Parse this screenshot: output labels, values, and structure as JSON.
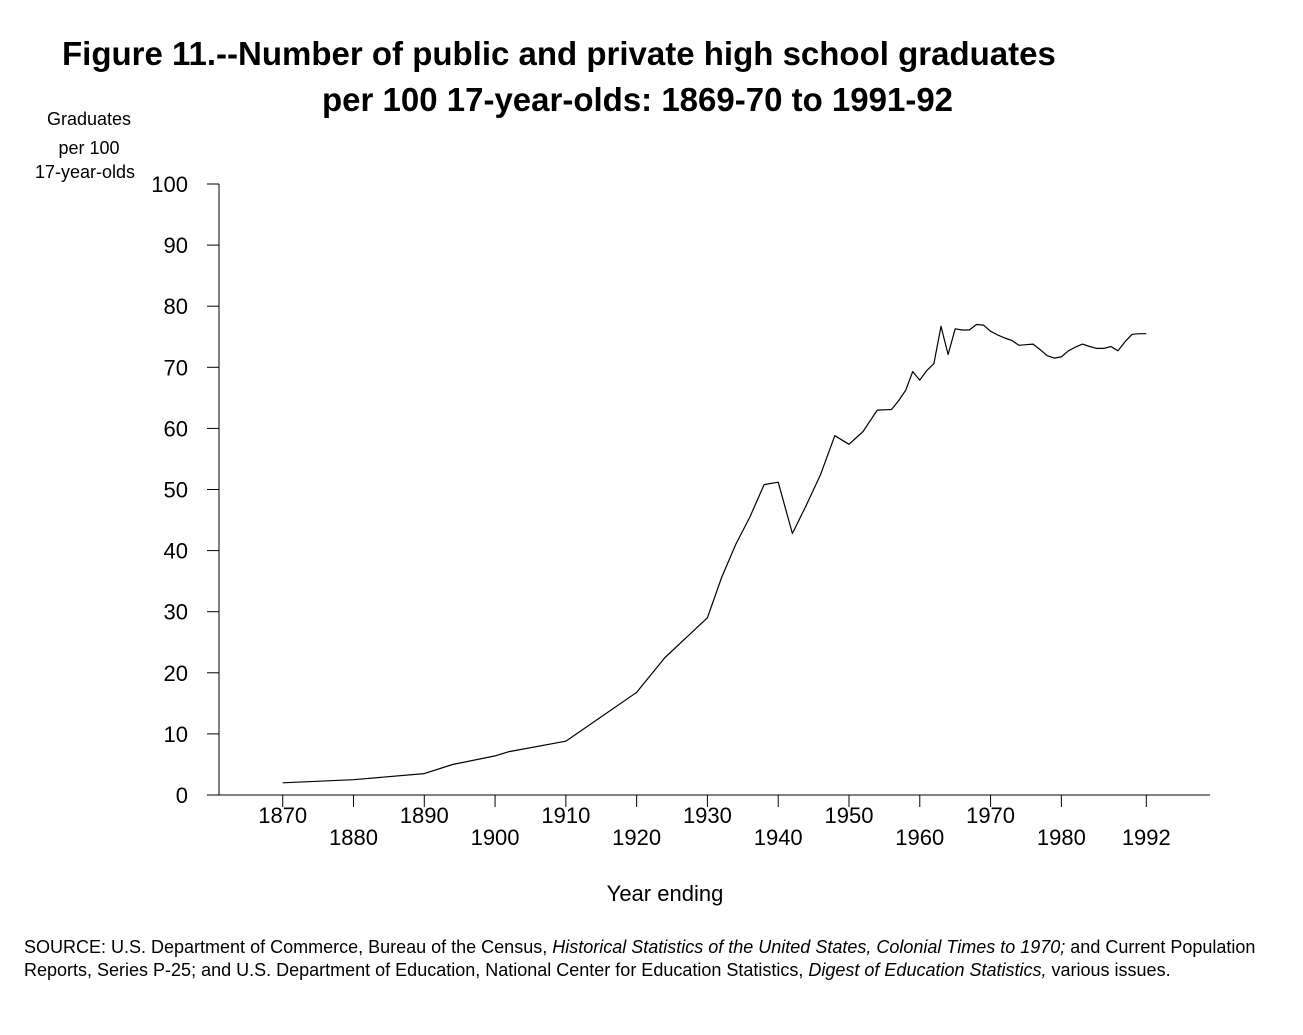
{
  "chart_data": {
    "type": "line",
    "title_line1": "Figure 11.--Number of public and private high school graduates",
    "title_line2": "per 100 17-year-olds:  1869-70 to 1991-92",
    "ylabel_lines": [
      "Graduates",
      "per 100",
      "17-year-olds"
    ],
    "xlabel": "Year ending",
    "ylim": [
      0,
      100
    ],
    "xlim": [
      1861,
      2001
    ],
    "y_ticks": [
      0,
      10,
      20,
      30,
      40,
      50,
      60,
      70,
      80,
      90,
      100
    ],
    "x_ticks_upper": [
      1870,
      1890,
      1910,
      1930,
      1950,
      1970
    ],
    "x_ticks_lower": [
      1880,
      1900,
      1920,
      1940,
      1960,
      1980,
      1992
    ],
    "grid": false,
    "series": [
      {
        "x": [
          1870,
          1880,
          1890,
          1894,
          1900,
          1902,
          1910,
          1920,
          1924,
          1930,
          1932,
          1934,
          1936,
          1938,
          1940,
          1942,
          1944,
          1946,
          1948,
          1950,
          1952,
          1954,
          1956,
          1957,
          1958,
          1959,
          1960,
          1961,
          1962,
          1963,
          1964,
          1965,
          1966,
          1967,
          1968,
          1969,
          1970,
          1971,
          1972,
          1973,
          1974,
          1975,
          1976,
          1977,
          1978,
          1979,
          1980,
          1981,
          1982,
          1983,
          1984,
          1985,
          1986,
          1987,
          1988,
          1989,
          1990,
          1991,
          1992
        ],
        "values": [
          2.0,
          2.5,
          3.5,
          5.0,
          6.4,
          7.1,
          8.8,
          16.8,
          22.5,
          29.0,
          35.6,
          41.0,
          45.5,
          50.8,
          51.2,
          42.8,
          47.5,
          52.5,
          58.8,
          57.4,
          59.5,
          63.0,
          63.1,
          64.5,
          66.2,
          69.3,
          67.9,
          69.5,
          70.6,
          76.7,
          72.1,
          76.3,
          76.1,
          76.1,
          77.0,
          76.9,
          75.9,
          75.3,
          74.8,
          74.4,
          73.6,
          73.7,
          73.8,
          72.9,
          71.9,
          71.5,
          71.7,
          72.7,
          73.3,
          73.8,
          73.4,
          73.1,
          73.1,
          73.4,
          72.7,
          74.2,
          75.4,
          75.5,
          75.5
        ]
      }
    ]
  },
  "source": {
    "p1": "SOURCE:  U.S. Department of Commerce, Bureau of the Census, ",
    "i1": "Historical Statistics of the United States, Colonial Times to 1970;",
    "p2": "  and Current Population Reports, Series P-25; and U.S. Department of Education, National Center for Education Statistics,  ",
    "i2": "Digest of Education Statistics,",
    "p3": " various issues."
  }
}
